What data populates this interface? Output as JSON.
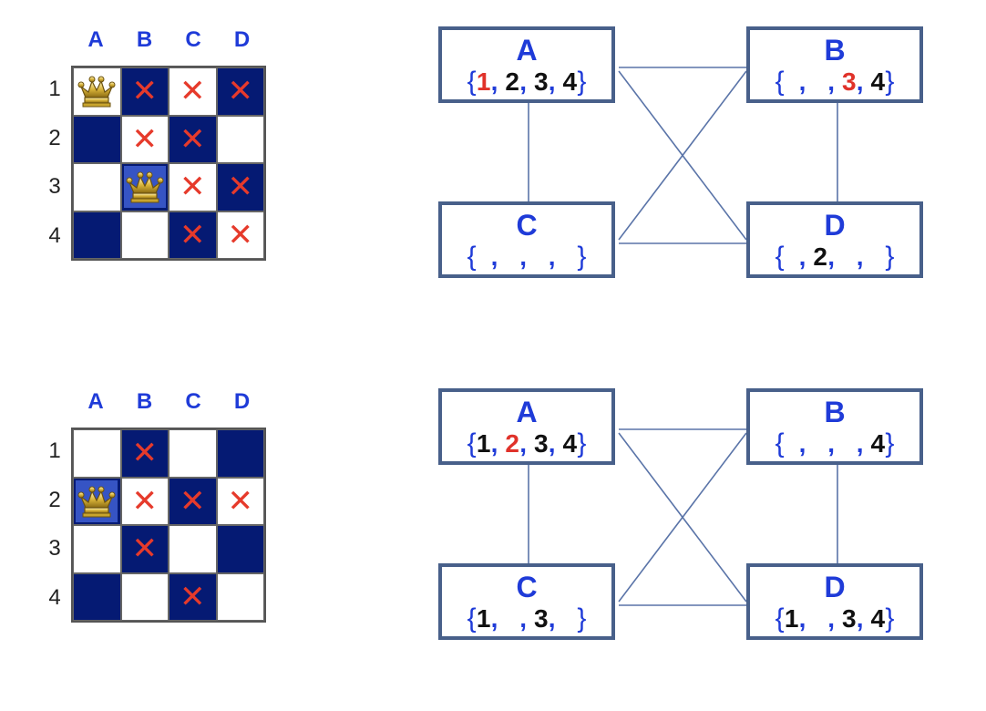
{
  "columns": [
    "A",
    "B",
    "C",
    "D"
  ],
  "rows": [
    "1",
    "2",
    "3",
    "4"
  ],
  "colors": {
    "board_dark": "#051a73",
    "board_light": "#ffffff",
    "x_mark": "#e63a2b",
    "label_blue": "#1f3bd8",
    "node_border": "#48608a",
    "value_red": "#e0322a"
  },
  "panels": [
    {
      "board": [
        [
          "queen",
          "x",
          "x",
          "x"
        ],
        [
          "",
          "x",
          "x",
          ""
        ],
        [
          "",
          "queen",
          "x",
          "x"
        ],
        [
          "",
          "",
          "x",
          "x"
        ]
      ],
      "queen_highlight": [
        [
          false,
          false,
          false,
          false
        ],
        [
          false,
          false,
          false,
          false
        ],
        [
          false,
          true,
          false,
          false
        ],
        [
          false,
          false,
          false,
          false
        ]
      ],
      "nodes": {
        "A": {
          "name": "A",
          "domain": [
            "1",
            "2",
            "3",
            "4"
          ],
          "highlight": [
            "1"
          ]
        },
        "B": {
          "name": "B",
          "domain": [
            "",
            "",
            "3",
            "4"
          ],
          "highlight": [
            "3"
          ]
        },
        "C": {
          "name": "C",
          "domain": [
            "",
            "",
            "",
            ""
          ],
          "highlight": []
        },
        "D": {
          "name": "D",
          "domain": [
            "",
            "2",
            "",
            ""
          ],
          "highlight": []
        }
      }
    },
    {
      "board": [
        [
          "",
          "x",
          "",
          ""
        ],
        [
          "queen",
          "x",
          "x",
          "x"
        ],
        [
          "",
          "x",
          "",
          ""
        ],
        [
          "",
          "",
          "x",
          ""
        ]
      ],
      "queen_highlight": [
        [
          false,
          false,
          false,
          false
        ],
        [
          true,
          false,
          false,
          false
        ],
        [
          false,
          false,
          false,
          false
        ],
        [
          false,
          false,
          false,
          false
        ]
      ],
      "nodes": {
        "A": {
          "name": "A",
          "domain": [
            "1",
            "2",
            "3",
            "4"
          ],
          "highlight": [
            "2"
          ]
        },
        "B": {
          "name": "B",
          "domain": [
            "",
            "",
            "",
            "4"
          ],
          "highlight": []
        },
        "C": {
          "name": "C",
          "domain": [
            "1",
            "",
            "3",
            ""
          ],
          "highlight": []
        },
        "D": {
          "name": "D",
          "domain": [
            "1",
            "",
            "3",
            "4"
          ],
          "highlight": []
        }
      }
    }
  ],
  "edges": [
    [
      "A",
      "B"
    ],
    [
      "A",
      "C"
    ],
    [
      "A",
      "D"
    ],
    [
      "B",
      "C"
    ],
    [
      "B",
      "D"
    ],
    [
      "C",
      "D"
    ]
  ]
}
